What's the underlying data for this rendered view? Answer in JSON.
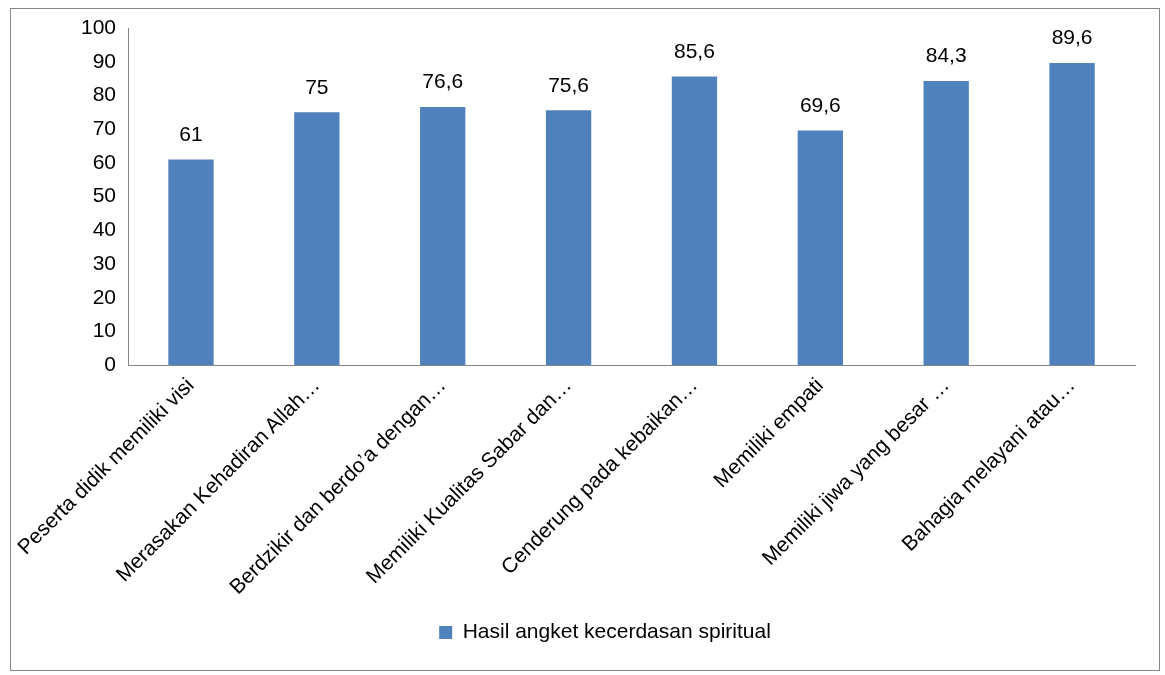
{
  "chart_data": {
    "type": "bar",
    "categories": [
      "Peserta didik memiliki visi",
      "Merasakan Kehadiran Allah…",
      "Berdzikir dan berdo’a dengan…",
      "Memiliki Kualitas Sabar dan…",
      "Cenderung pada kebaikan…",
      "Memiliki empati",
      "Memiliki jiwa yang besar …",
      "Bahagia melayani atau…"
    ],
    "series": [
      {
        "name": "Hasil angket kecerdasan spiritual",
        "color": "#4f81bd",
        "values": [
          61,
          75,
          76.6,
          75.6,
          85.6,
          69.6,
          84.3,
          89.6
        ],
        "value_labels": [
          "61",
          "75",
          "76,6",
          "75,6",
          "85,6",
          "69,6",
          "84,3",
          "89,6"
        ]
      }
    ],
    "ylim": [
      0,
      100
    ],
    "yticks": [
      0,
      10,
      20,
      30,
      40,
      50,
      60,
      70,
      80,
      90,
      100
    ],
    "grid": false,
    "legend": "bottom"
  }
}
